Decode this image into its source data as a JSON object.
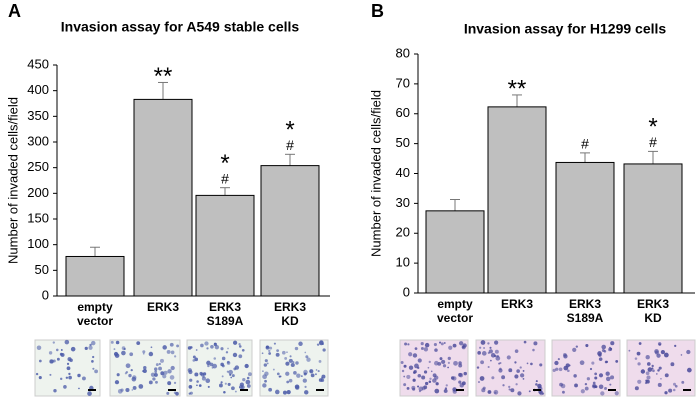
{
  "chart_data": [
    {
      "type": "bar",
      "panel": "A",
      "title": "Invasion assay for A549 stable cells",
      "y_label": "Number of invaded cells/field",
      "categories": [
        "empty\nvector",
        "ERK3",
        "ERK3\nS189A",
        "ERK3\nKD"
      ],
      "values": [
        77,
        383,
        196,
        254
      ],
      "errors": [
        18,
        33,
        15,
        22
      ],
      "stars": [
        null,
        "**",
        "*",
        "*"
      ],
      "hashes": [
        null,
        null,
        "#",
        "#"
      ],
      "color": "#bfbfbf",
      "ylim": [
        0,
        450
      ],
      "yticks": [
        0,
        50,
        100,
        150,
        200,
        250,
        300,
        350,
        400,
        450
      ]
    },
    {
      "type": "bar",
      "panel": "B",
      "title": "Invasion assay for H1299 cells",
      "y_label": "Number of invaded cells/field",
      "categories": [
        "empty\nvector",
        "ERK3",
        "ERK3\nS189A",
        "ERK3\nKD"
      ],
      "values": [
        27.5,
        62.3,
        43.7,
        43.2
      ],
      "errors": [
        3.8,
        4,
        3.2,
        4.2
      ],
      "stars": [
        null,
        "**",
        null,
        "*"
      ],
      "hashes": [
        null,
        null,
        "#",
        "#"
      ],
      "color": "#bfbfbf",
      "ylim": [
        0,
        80
      ],
      "yticks": [
        0,
        10,
        20,
        30,
        40,
        50,
        60,
        70,
        80
      ]
    }
  ]
}
